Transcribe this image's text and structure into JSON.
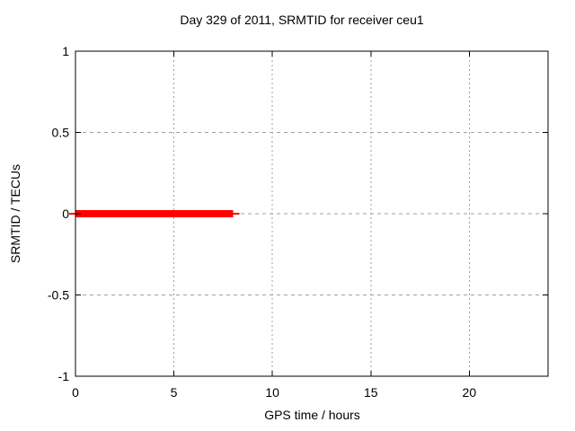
{
  "chart_data": {
    "type": "line",
    "title": "Day 329 of 2011, SRMTID for receiver ceu1",
    "xlabel": "GPS time / hours",
    "ylabel": "SRMTID / TECUs",
    "xlim": [
      0,
      24
    ],
    "ylim": [
      -1,
      1
    ],
    "xticks": [
      0,
      5,
      10,
      15,
      20
    ],
    "yticks": [
      -1,
      -0.5,
      0,
      0.5,
      1
    ],
    "grid": true,
    "legend": "none",
    "series": [
      {
        "name": "SRMTID",
        "color": "#ff0000",
        "linewidth": 8,
        "x": [
          0,
          8
        ],
        "y": [
          0,
          0
        ]
      }
    ]
  },
  "colors": {
    "background": "#ffffff",
    "axis": "#000000",
    "grid": "#a0a0a0",
    "text": "#000000",
    "line": "#ff0000"
  }
}
